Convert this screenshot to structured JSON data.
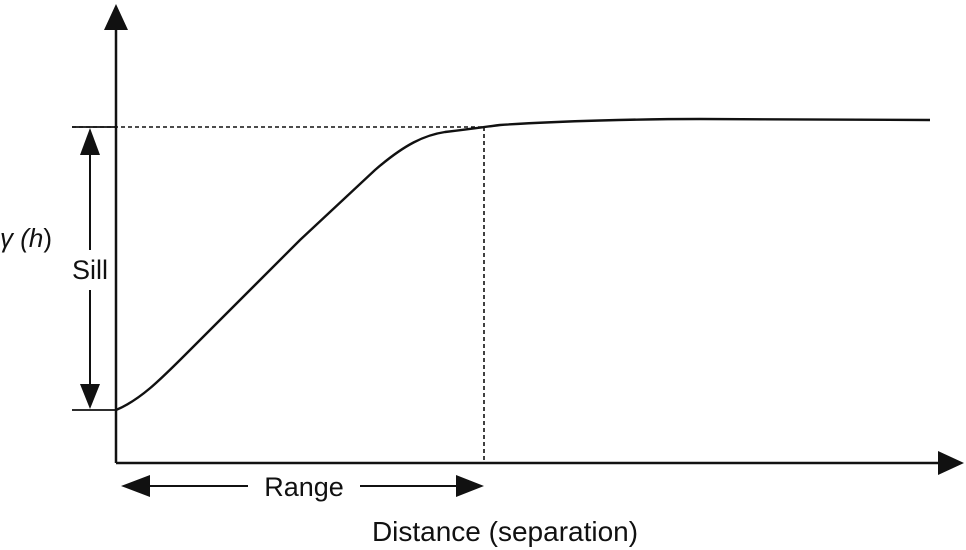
{
  "diagram": {
    "y_axis_label": "γ (h)",
    "x_axis_label": "Distance (separation)",
    "sill_label": "Sill",
    "range_label": "Range"
  },
  "colors": {
    "stroke": "#111111",
    "background": "#ffffff"
  }
}
